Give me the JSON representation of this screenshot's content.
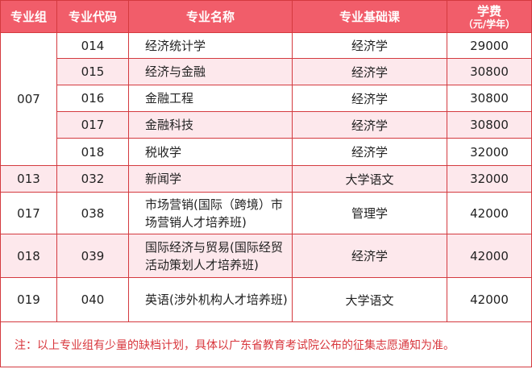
{
  "headers": {
    "group": "专业组",
    "code": "专业代码",
    "name": "专业名称",
    "basic": "专业基础课",
    "fee": "学费",
    "fee_unit": "（元/学年）"
  },
  "rows": [
    {
      "group": "007",
      "code": "014",
      "name": "经济统计学",
      "basic": "经济学",
      "fee": "29000"
    },
    {
      "code": "015",
      "name": "经济与金融",
      "basic": "经济学",
      "fee": "30800"
    },
    {
      "code": "016",
      "name": "金融工程",
      "basic": "经济学",
      "fee": "30800"
    },
    {
      "code": "017",
      "name": "金融科技",
      "basic": "经济学",
      "fee": "30800"
    },
    {
      "code": "018",
      "name": "税收学",
      "basic": "经济学",
      "fee": "32000"
    },
    {
      "group": "013",
      "code": "032",
      "name": "新闻学",
      "basic": "大学语文",
      "fee": "32000"
    },
    {
      "group": "017",
      "code": "038",
      "name": "市场营销(国际（跨境）市场营销人才培养班)",
      "basic": "管理学",
      "fee": "42000"
    },
    {
      "group": "018",
      "code": "039",
      "name": "国际经济与贸易(国际经贸活动策划人才培养班)",
      "basic": "经济学",
      "fee": "42000"
    },
    {
      "group": "019",
      "code": "040",
      "name": "英语(涉外机构人才培养班)",
      "basic": "大学语文",
      "fee": "42000"
    }
  ],
  "note": "注：以上专业组有少量的缺档计划，具体以广东省教育考试院公布的征集志愿通知为准。",
  "colors": {
    "header": "#f15d6a",
    "border": "#d43a3f",
    "stripe": "#fde8ec",
    "note": "#d8363c"
  }
}
